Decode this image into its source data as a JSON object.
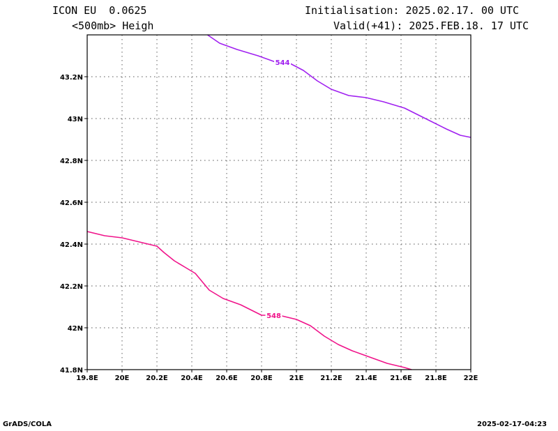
{
  "header": {
    "model": "ICON EU  0.0625",
    "variable": "<500mb> Heigh",
    "init": "Initialisation: 2025.02.17. 00 UTC",
    "valid": "Valid(+41): 2025.FEB.18. 17 UTC"
  },
  "footer": {
    "left": "GrADS/COLA",
    "right": "2025-02-17-04:23"
  },
  "chart_data": {
    "type": "line",
    "grid": true,
    "xlim": [
      19.8,
      22.0
    ],
    "ylim": [
      41.8,
      43.4
    ],
    "x_ticks": [
      19.8,
      20.0,
      20.2,
      20.4,
      20.6,
      20.8,
      21.0,
      21.2,
      21.4,
      21.6,
      21.8,
      22.0
    ],
    "x_tick_labels": [
      "19.8E",
      "20E",
      "20.2E",
      "20.4E",
      "20.6E",
      "20.8E",
      "21E",
      "21.2E",
      "21.4E",
      "21.6E",
      "21.8E",
      "22E"
    ],
    "y_ticks": [
      41.8,
      42.0,
      42.2,
      42.4,
      42.6,
      42.8,
      43.0,
      43.2
    ],
    "y_tick_labels": [
      "41.8N",
      "42N",
      "42.2N",
      "42.4N",
      "42.6N",
      "42.8N",
      "43N",
      "43.2N"
    ],
    "series": [
      {
        "name": "544",
        "color": "#a020f0",
        "label_at": [
          20.92,
          43.27
        ],
        "points": [
          [
            20.49,
            43.4
          ],
          [
            20.56,
            43.36
          ],
          [
            20.66,
            43.33
          ],
          [
            20.78,
            43.3
          ],
          [
            20.88,
            43.27
          ],
          [
            20.96,
            43.265
          ],
          [
            21.04,
            43.23
          ],
          [
            21.12,
            43.18
          ],
          [
            21.2,
            43.14
          ],
          [
            21.3,
            43.11
          ],
          [
            21.4,
            43.1
          ],
          [
            21.5,
            43.08
          ],
          [
            21.62,
            43.05
          ],
          [
            21.74,
            43.0
          ],
          [
            21.86,
            42.95
          ],
          [
            21.94,
            42.92
          ],
          [
            22.0,
            42.91
          ]
        ]
      },
      {
        "name": "548",
        "color": "#f0138a",
        "label_at": [
          20.87,
          42.06
        ],
        "points": [
          [
            19.8,
            42.46
          ],
          [
            19.9,
            42.44
          ],
          [
            20.0,
            42.43
          ],
          [
            20.1,
            42.41
          ],
          [
            20.2,
            42.39
          ],
          [
            20.24,
            42.36
          ],
          [
            20.3,
            42.32
          ],
          [
            20.36,
            42.29
          ],
          [
            20.42,
            42.26
          ],
          [
            20.46,
            42.22
          ],
          [
            20.5,
            42.18
          ],
          [
            20.58,
            42.14
          ],
          [
            20.68,
            42.11
          ],
          [
            20.8,
            42.06
          ],
          [
            20.9,
            42.06
          ],
          [
            21.0,
            42.04
          ],
          [
            21.08,
            42.01
          ],
          [
            21.16,
            41.96
          ],
          [
            21.24,
            41.92
          ],
          [
            21.32,
            41.89
          ],
          [
            21.42,
            41.86
          ],
          [
            21.52,
            41.83
          ],
          [
            21.62,
            41.81
          ],
          [
            21.66,
            41.8
          ]
        ]
      }
    ]
  }
}
